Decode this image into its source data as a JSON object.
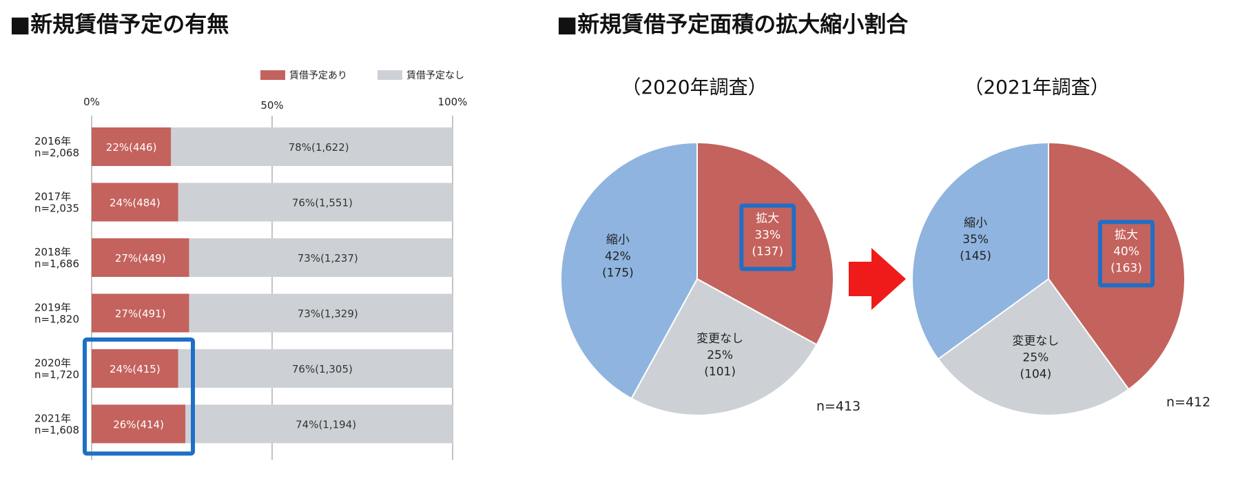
{
  "colors": {
    "yes": "#c4625d",
    "no": "#cdd1d6",
    "shrink": "#8fb4df",
    "highlight": "#1f6fc6",
    "arrow": "#ef1b1b"
  },
  "left": {
    "title": "■新規賃借予定の有無",
    "legend": [
      "賃借予定あり",
      "賃借予定なし"
    ],
    "ticks": [
      "0%",
      "50%",
      "100%"
    ]
  },
  "right": {
    "title": "■新規賃借予定面積の拡大縮小割合",
    "pie2020": {
      "subtitle": "（2020年調査）",
      "n": "n=413"
    },
    "pie2021": {
      "subtitle": "（2021年調査）",
      "n": "n=412"
    }
  },
  "chart_data": [
    {
      "type": "bar",
      "title": "■新規賃借予定の有無",
      "orientation": "horizontal-stacked",
      "xlim": [
        0,
        100
      ],
      "categories": [
        [
          "2016年",
          "n=2,068"
        ],
        [
          "2017年",
          "n=2,035"
        ],
        [
          "2018年",
          "n=1,686"
        ],
        [
          "2019年",
          "n=1,820"
        ],
        [
          "2020年",
          "n=1,720"
        ],
        [
          "2021年",
          "n=1,608"
        ]
      ],
      "series": [
        {
          "name": "賃借予定あり",
          "values": [
            22,
            24,
            27,
            27,
            24,
            26
          ],
          "labels": [
            "22%(446)",
            "24%(484)",
            "27%(449)",
            "27%(491)",
            "24%(415)",
            "26%(414)"
          ]
        },
        {
          "name": "賃借予定なし",
          "values": [
            78,
            76,
            73,
            73,
            76,
            74
          ],
          "labels": [
            "78%(1,622)",
            "76%(1,551)",
            "73%(1,237)",
            "73%(1,329)",
            "76%(1,305)",
            "74%(1,194)"
          ]
        }
      ],
      "highlighted_categories": [
        4,
        5
      ],
      "legend_position": "top-right",
      "grid": true
    },
    {
      "type": "pie",
      "title": "（2020年調査）",
      "slices": [
        {
          "name": "拡大",
          "pct": "33%",
          "count": "(137)",
          "value": 33,
          "color": "#c4625d",
          "highlight": true
        },
        {
          "name": "変更なし",
          "pct": "25%",
          "count": "(101)",
          "value": 25,
          "color": "#cdd1d6"
        },
        {
          "name": "縮小",
          "pct": "42%",
          "count": "(175)",
          "value": 42,
          "color": "#8fb4df"
        }
      ],
      "n": "n=413"
    },
    {
      "type": "pie",
      "title": "（2021年調査）",
      "slices": [
        {
          "name": "拡大",
          "pct": "40%",
          "count": "(163)",
          "value": 40,
          "color": "#c4625d",
          "highlight": true
        },
        {
          "name": "変更なし",
          "pct": "25%",
          "count": "(104)",
          "value": 25,
          "color": "#cdd1d6"
        },
        {
          "name": "縮小",
          "pct": "35%",
          "count": "(145)",
          "value": 35,
          "color": "#8fb4df"
        }
      ],
      "n": "n=412"
    }
  ]
}
